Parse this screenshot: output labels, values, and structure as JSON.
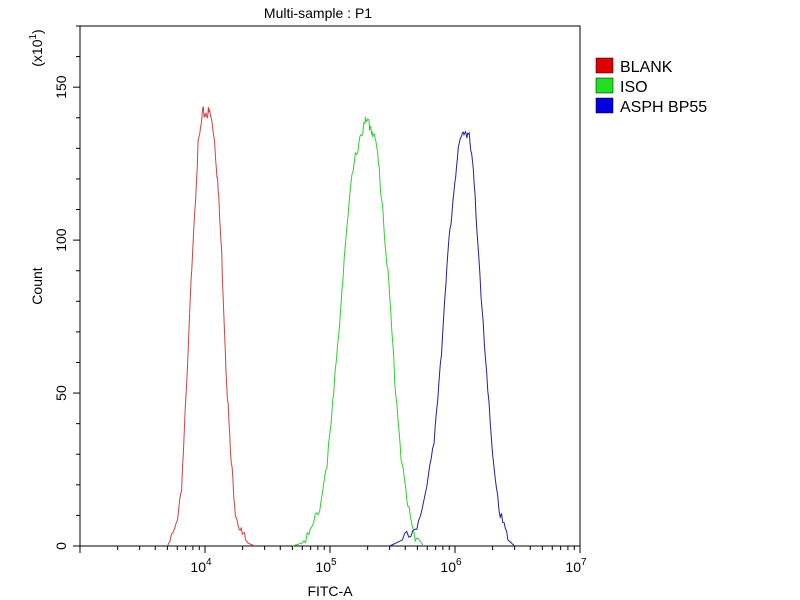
{
  "chart_data": {
    "type": "line",
    "title": "Multi-sample : P1",
    "xlabel": "FITC-A",
    "ylabel": "Count",
    "y_scale_note": "(x10",
    "y_scale_exp": "1",
    "y_scale_close": ")",
    "x_scale": "log",
    "xlim": [
      1000,
      10000000
    ],
    "ylim": [
      0,
      170
    ],
    "x_ticks": [
      {
        "base": "10",
        "exp": "4",
        "value": 10000
      },
      {
        "base": "10",
        "exp": "5",
        "value": 100000
      },
      {
        "base": "10",
        "exp": "6",
        "value": 1000000
      },
      {
        "base": "10",
        "exp": "7",
        "value": 10000000
      }
    ],
    "y_ticks": [
      {
        "label": "0",
        "value": 0
      },
      {
        "label": "50",
        "value": 50
      },
      {
        "label": "100",
        "value": 100
      },
      {
        "label": "150",
        "value": 150
      }
    ],
    "grid": false,
    "legend_position": "top-right",
    "series": [
      {
        "name": "BLANK",
        "color": "#d04040",
        "x": [
          5000,
          5800,
          6500,
          7200,
          8000,
          8800,
          9600,
          10300,
          11000,
          11800,
          12600,
          13600,
          14700,
          16000,
          17500,
          19500,
          22000,
          25000
        ],
        "y": [
          0,
          5,
          20,
          55,
          100,
          130,
          141,
          142,
          141,
          135,
          120,
          95,
          60,
          30,
          12,
          4,
          1,
          0
        ]
      },
      {
        "name": "ISO",
        "color": "#30d030",
        "x": [
          50000,
          60000,
          72000,
          85000,
          100000,
          115000,
          130000,
          150000,
          170000,
          190000,
          205000,
          220000,
          240000,
          265000,
          295000,
          330000,
          370000,
          420000,
          480000,
          560000
        ],
        "y": [
          0,
          1,
          5,
          15,
          35,
          65,
          95,
          120,
          133,
          138,
          138,
          136,
          128,
          110,
          85,
          55,
          30,
          12,
          4,
          0
        ]
      },
      {
        "name": "ASPH BP55",
        "color": "#2020a0",
        "x": [
          300000,
          380000,
          480000,
          580000,
          680000,
          780000,
          880000,
          980000,
          1080000,
          1180000,
          1280000,
          1400000,
          1550000,
          1750000,
          2000000,
          2300000,
          2650000,
          3000000
        ],
        "y": [
          0,
          2,
          6,
          15,
          35,
          65,
          95,
          118,
          130,
          136,
          135,
          122,
          95,
          60,
          30,
          10,
          2,
          0
        ]
      }
    ]
  }
}
